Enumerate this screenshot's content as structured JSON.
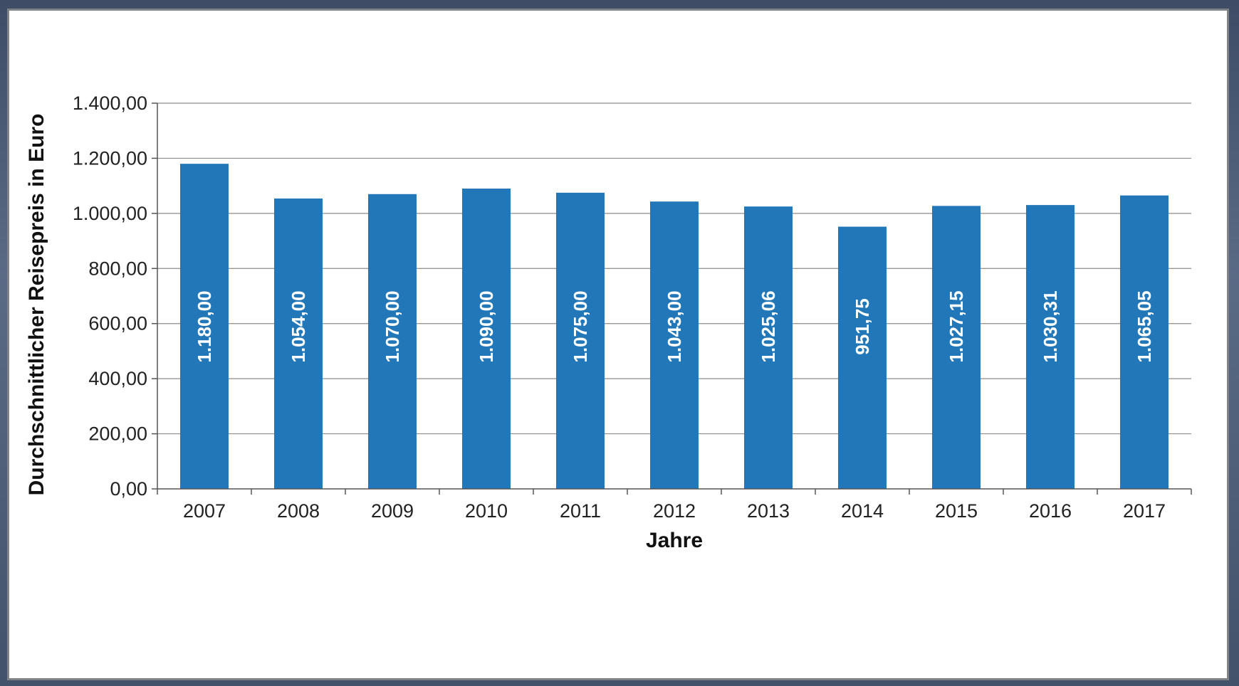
{
  "chart_data": {
    "type": "bar",
    "categories": [
      "2007",
      "2008",
      "2009",
      "2010",
      "2011",
      "2012",
      "2013",
      "2014",
      "2015",
      "2016",
      "2017"
    ],
    "values": [
      1180.0,
      1054.0,
      1070.0,
      1090.0,
      1075.0,
      1043.0,
      1025.06,
      951.75,
      1027.15,
      1030.31,
      1065.05
    ],
    "value_labels": [
      "1.180,00",
      "1.054,00",
      "1.070,00",
      "1.090,00",
      "1.075,00",
      "1.043,00",
      "1.025,06",
      "951,75",
      "1.027,15",
      "1.030,31",
      "1.065,05"
    ],
    "title": "",
    "xlabel": "Jahre",
    "ylabel": "Durchschnittlicher Reisepreis in Euro",
    "ylim": [
      0,
      1400
    ],
    "yticks": [
      0,
      200,
      400,
      600,
      800,
      1000,
      1200,
      1400
    ],
    "ytick_labels": [
      "0,00",
      "200,00",
      "400,00",
      "600,00",
      "800,00",
      "1.000,00",
      "1.200,00",
      "1.400,00"
    ],
    "grid": true,
    "legend": "none",
    "colors": {
      "bar": "#2277b8",
      "grid": "#8c8c8c",
      "axis": "#555555"
    }
  }
}
